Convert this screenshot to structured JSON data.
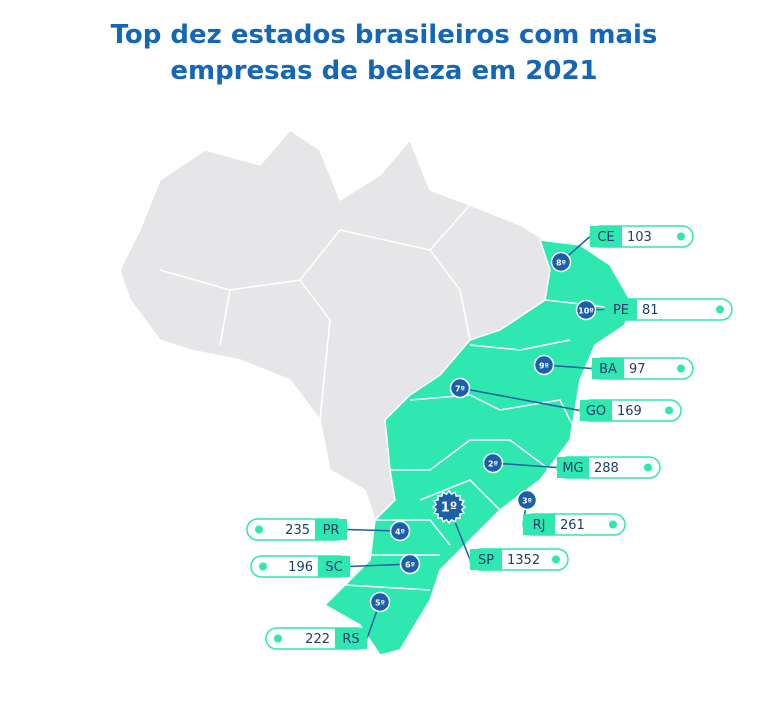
{
  "title": [
    "Top dez estados brasileiros com mais",
    "empresas de beleza em 2021"
  ],
  "states": [
    {
      "rank": "8º",
      "code": "CE",
      "value": 103
    },
    {
      "rank": "10º",
      "code": "PE",
      "value": 81
    },
    {
      "rank": "9º",
      "code": "BA",
      "value": 97
    },
    {
      "rank": "7º",
      "code": "GO",
      "value": 169
    },
    {
      "rank": "2º",
      "code": "MG",
      "value": 288
    },
    {
      "rank": "3º",
      "code": "RJ",
      "value": 261
    },
    {
      "rank": "1º",
      "code": "SP",
      "value": 1352
    },
    {
      "rank": "4º",
      "code": "PR",
      "value": 235
    },
    {
      "rank": "6º",
      "code": "SC",
      "value": 196
    },
    {
      "rank": "5º",
      "code": "RS",
      "value": 222
    }
  ]
}
